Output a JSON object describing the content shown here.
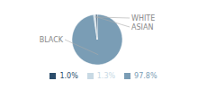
{
  "chart_data": {
    "type": "pie",
    "categories": [
      "BLACK",
      "WHITE",
      "ASIAN"
    ],
    "values": [
      97.8,
      1.3,
      1.0
    ],
    "value_labels": [
      "97.8%",
      "1.3%",
      "1.0%"
    ],
    "colors": [
      "#7a9db5",
      "#c8d9e4",
      "#2b4d6b"
    ],
    "legend": "bottom"
  }
}
